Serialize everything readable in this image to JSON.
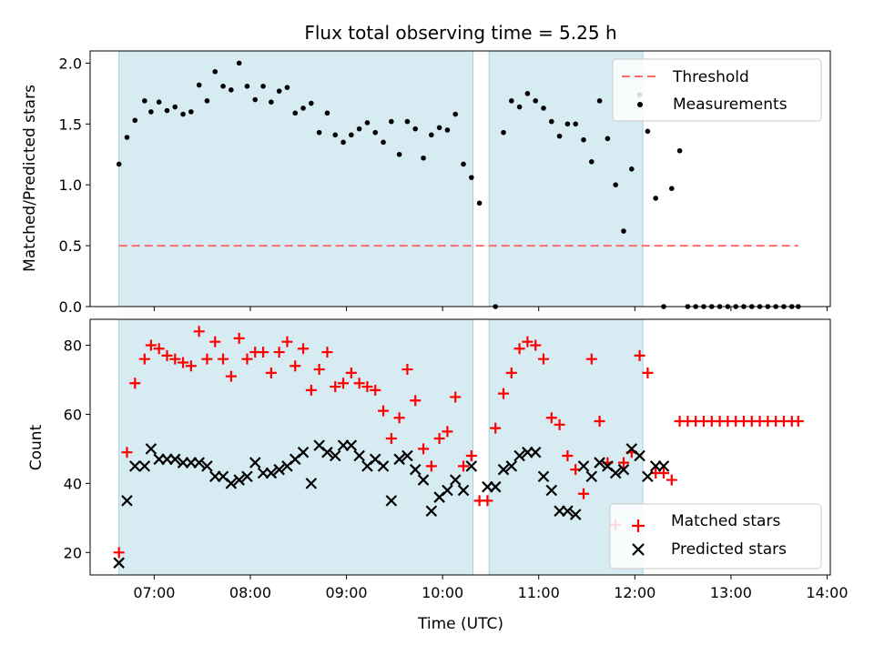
{
  "chart_data": [
    {
      "type": "scatter",
      "title": "Flux total observing time = 5.25 h",
      "xlabel": "",
      "ylabel": "Matched/Predicted stars",
      "xlim": [
        "06:20",
        "14:02"
      ],
      "ylim": [
        0,
        2.1
      ],
      "yticks": [
        0.0,
        0.5,
        1.0,
        1.5,
        2.0
      ],
      "ytick_labels": [
        "0.0",
        "0.5",
        "1.0",
        "1.5",
        "2.0"
      ],
      "observing_windows": [
        {
          "start": "06:38",
          "end": "10:19"
        },
        {
          "start": "10:29",
          "end": "12:05"
        }
      ],
      "threshold": {
        "name": "Threshold",
        "value": 0.5,
        "x_range": [
          "06:38",
          "13:42"
        ],
        "color": "#ff6b6b"
      },
      "measurements_name": "Measurements",
      "legend": [
        "Threshold",
        "Measurements"
      ],
      "legend_position": "upper right",
      "grid": false,
      "x": [
        "06:38",
        "06:43",
        "06:48",
        "06:54",
        "06:58",
        "07:03",
        "07:08",
        "07:13",
        "07:18",
        "07:23",
        "07:28",
        "07:33",
        "07:38",
        "07:43",
        "07:48",
        "07:53",
        "07:58",
        "08:03",
        "08:08",
        "08:13",
        "08:18",
        "08:23",
        "08:28",
        "08:33",
        "08:38",
        "08:43",
        "08:48",
        "08:53",
        "08:58",
        "09:03",
        "09:08",
        "09:13",
        "09:18",
        "09:23",
        "09:28",
        "09:33",
        "09:38",
        "09:43",
        "09:48",
        "09:53",
        "09:58",
        "10:03",
        "10:08",
        "10:13",
        "10:18",
        "10:23",
        "10:33",
        "10:38",
        "10:43",
        "10:48",
        "10:53",
        "10:58",
        "11:03",
        "11:08",
        "11:13",
        "11:18",
        "11:23",
        "11:28",
        "11:33",
        "11:38",
        "11:43",
        "11:48",
        "11:53",
        "11:58",
        "12:03",
        "12:08",
        "12:13",
        "12:18",
        "12:23",
        "12:28",
        "12:33",
        "12:38",
        "12:43",
        "12:48",
        "12:53",
        "12:58",
        "13:03",
        "13:08",
        "13:13",
        "13:18",
        "13:23",
        "13:28",
        "13:33",
        "13:38",
        "13:42"
      ],
      "values": [
        1.17,
        1.39,
        1.53,
        1.69,
        1.6,
        1.68,
        1.61,
        1.64,
        1.58,
        1.6,
        1.82,
        1.69,
        1.93,
        1.81,
        1.78,
        2.0,
        1.81,
        1.7,
        1.81,
        1.68,
        1.77,
        1.8,
        1.59,
        1.63,
        1.67,
        1.43,
        1.59,
        1.41,
        1.35,
        1.41,
        1.46,
        1.51,
        1.43,
        1.35,
        1.52,
        1.25,
        1.52,
        1.46,
        1.22,
        1.41,
        1.47,
        1.45,
        1.58,
        1.17,
        1.06,
        0.85,
        0.0,
        1.43,
        1.69,
        1.64,
        1.75,
        1.69,
        1.63,
        1.52,
        1.4,
        1.5,
        1.5,
        1.37,
        1.19,
        1.69,
        1.38,
        1.0,
        0.62,
        1.13,
        1.74,
        1.44,
        0.89,
        0.0,
        0.97,
        1.28,
        0.0,
        0.0,
        0.0,
        0.0,
        0.0,
        0.0,
        0.0,
        0.0,
        0.0,
        0.0,
        0.0,
        0.0,
        0.0,
        0.0,
        0.0
      ],
      "point_color": "#000000"
    },
    {
      "type": "scatter",
      "title": "",
      "xlabel": "Time (UTC)",
      "ylabel": "Count",
      "xlim": [
        "06:20",
        "14:02"
      ],
      "ylim": [
        13.5,
        87.5
      ],
      "yticks": [
        20,
        40,
        60,
        80
      ],
      "ytick_labels": [
        "20",
        "40",
        "60",
        "80"
      ],
      "xticks": [
        "07:00",
        "08:00",
        "09:00",
        "10:00",
        "11:00",
        "12:00",
        "13:00",
        "14:00"
      ],
      "xtick_labels": [
        "07:00",
        "08:00",
        "09:00",
        "10:00",
        "11:00",
        "12:00",
        "13:00",
        "14:00"
      ],
      "observing_windows": [
        {
          "start": "06:38",
          "end": "10:19"
        },
        {
          "start": "10:29",
          "end": "12:05"
        }
      ],
      "legend": [
        "Matched stars",
        "Predicted stars"
      ],
      "legend_position": "lower right",
      "grid": false,
      "series": [
        {
          "name": "Matched stars",
          "marker": "+",
          "color": "#ff0000",
          "x": [
            "06:38",
            "06:43",
            "06:48",
            "06:54",
            "06:58",
            "07:03",
            "07:08",
            "07:13",
            "07:18",
            "07:23",
            "07:28",
            "07:33",
            "07:38",
            "07:43",
            "07:48",
            "07:53",
            "07:58",
            "08:03",
            "08:08",
            "08:13",
            "08:18",
            "08:23",
            "08:28",
            "08:33",
            "08:38",
            "08:43",
            "08:48",
            "08:53",
            "08:58",
            "09:03",
            "09:08",
            "09:13",
            "09:18",
            "09:23",
            "09:28",
            "09:33",
            "09:38",
            "09:43",
            "09:48",
            "09:53",
            "09:58",
            "10:03",
            "10:08",
            "10:13",
            "10:18",
            "10:23",
            "10:28",
            "10:33",
            "10:38",
            "10:43",
            "10:48",
            "10:53",
            "10:58",
            "11:03",
            "11:08",
            "11:13",
            "11:18",
            "11:23",
            "11:28",
            "11:33",
            "11:38",
            "11:43",
            "11:48",
            "11:53",
            "11:58",
            "12:03",
            "12:08",
            "12:13",
            "12:18",
            "12:23",
            "12:28",
            "12:33",
            "12:38",
            "12:43",
            "12:48",
            "12:53",
            "12:58",
            "13:03",
            "13:08",
            "13:13",
            "13:18",
            "13:23",
            "13:28",
            "13:33",
            "13:38",
            "13:42"
          ],
          "values": [
            20,
            49,
            69,
            76,
            80,
            79,
            77,
            76,
            75,
            74,
            84,
            76,
            81,
            76,
            71,
            82,
            76,
            78,
            78,
            72,
            78,
            81,
            74,
            79,
            67,
            73,
            78,
            68,
            69,
            72,
            69,
            68,
            67,
            61,
            53,
            59,
            73,
            64,
            50,
            45,
            53,
            55,
            65,
            45,
            48,
            35,
            35,
            56,
            66,
            72,
            79,
            81,
            80,
            76,
            59,
            57,
            48,
            44,
            37,
            76,
            58,
            46,
            28,
            46,
            49,
            77,
            72,
            43,
            43,
            41,
            58,
            58,
            58,
            58,
            58,
            58,
            58,
            58,
            58,
            58,
            58,
            58,
            58,
            58,
            58,
            58
          ]
        },
        {
          "name": "Predicted stars",
          "marker": "x",
          "color": "#000000",
          "x": [
            "06:38",
            "06:43",
            "06:48",
            "06:54",
            "06:58",
            "07:03",
            "07:08",
            "07:13",
            "07:18",
            "07:23",
            "07:28",
            "07:33",
            "07:38",
            "07:43",
            "07:48",
            "07:53",
            "07:58",
            "08:03",
            "08:08",
            "08:13",
            "08:18",
            "08:23",
            "08:28",
            "08:33",
            "08:38",
            "08:43",
            "08:48",
            "08:53",
            "08:58",
            "09:03",
            "09:08",
            "09:13",
            "09:18",
            "09:23",
            "09:28",
            "09:33",
            "09:38",
            "09:43",
            "09:48",
            "09:53",
            "09:58",
            "10:03",
            "10:08",
            "10:13",
            "10:18",
            "10:28",
            "10:33",
            "10:38",
            "10:43",
            "10:48",
            "10:53",
            "10:58",
            "11:03",
            "11:08",
            "11:13",
            "11:18",
            "11:23",
            "11:28",
            "11:33",
            "11:38",
            "11:43",
            "11:48",
            "11:53",
            "11:58",
            "12:03",
            "12:08",
            "12:13",
            "12:18"
          ],
          "values": [
            17,
            35,
            45,
            45,
            50,
            47,
            47,
            47,
            46,
            46,
            46,
            45,
            42,
            42,
            40,
            41,
            42,
            46,
            43,
            43,
            44,
            45,
            47,
            49,
            40,
            51,
            49,
            48,
            51,
            51,
            48,
            45,
            47,
            45,
            35,
            47,
            48,
            44,
            41,
            32,
            36,
            38,
            41,
            38,
            45,
            39,
            39,
            44,
            45,
            48,
            49,
            49,
            42,
            38,
            32,
            32,
            31,
            45,
            42,
            46,
            45,
            43,
            44,
            50,
            48,
            42,
            45,
            45
          ]
        }
      ]
    }
  ]
}
